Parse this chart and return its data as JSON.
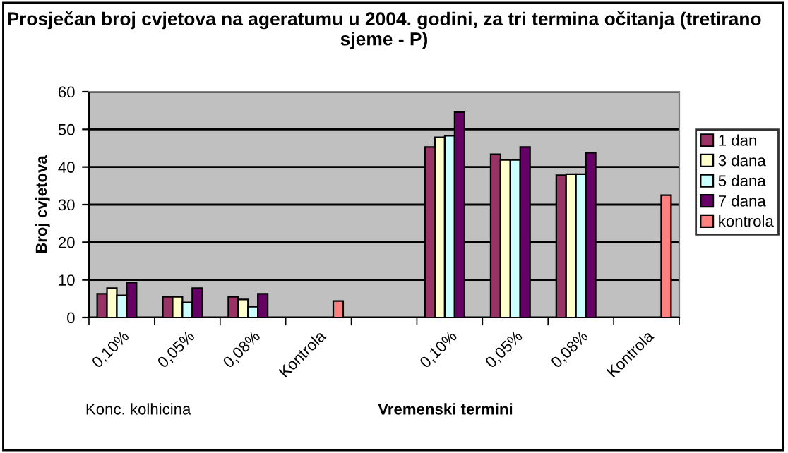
{
  "chart_data": {
    "type": "bar",
    "title": "Prosječan broj cvjetova na ageratumu u 2004. godini, za tri termina očitanja (tretirano sjeme - P)",
    "ylabel": "Broj cvjetova",
    "categories": [
      "0,10%",
      "0,05%",
      "0,08%",
      "Kontrola",
      null,
      "0,10%",
      "0,05%",
      "0,08%",
      "Kontrola"
    ],
    "series": [
      {
        "name": "1 dan",
        "color": "#993366",
        "values": [
          6.3,
          5.5,
          5.5,
          null,
          null,
          45.3,
          43.4,
          37.8,
          null
        ]
      },
      {
        "name": "3 dana",
        "color": "#ffffcc",
        "values": [
          7.8,
          5.5,
          4.8,
          null,
          null,
          47.9,
          41.9,
          38.1,
          null
        ]
      },
      {
        "name": "5 dana",
        "color": "#ccffff",
        "values": [
          5.9,
          4,
          2.9,
          null,
          null,
          48.3,
          41.9,
          38.1,
          null
        ]
      },
      {
        "name": "7 dana",
        "color": "#660066",
        "values": [
          9.3,
          7.8,
          6.3,
          null,
          null,
          54.6,
          45.3,
          43.8,
          null
        ]
      },
      {
        "name": "kontrola",
        "color": "#ff8080",
        "values": [
          null,
          null,
          null,
          4.4,
          null,
          null,
          null,
          null,
          32.5
        ]
      }
    ],
    "annotations": [
      "Konc. kolhicina",
      "Vremenski termini"
    ],
    "ylim": [
      0,
      60
    ],
    "yticks": [
      0,
      10,
      20,
      30,
      40,
      50,
      60
    ],
    "grid": "y",
    "legend": "right"
  }
}
